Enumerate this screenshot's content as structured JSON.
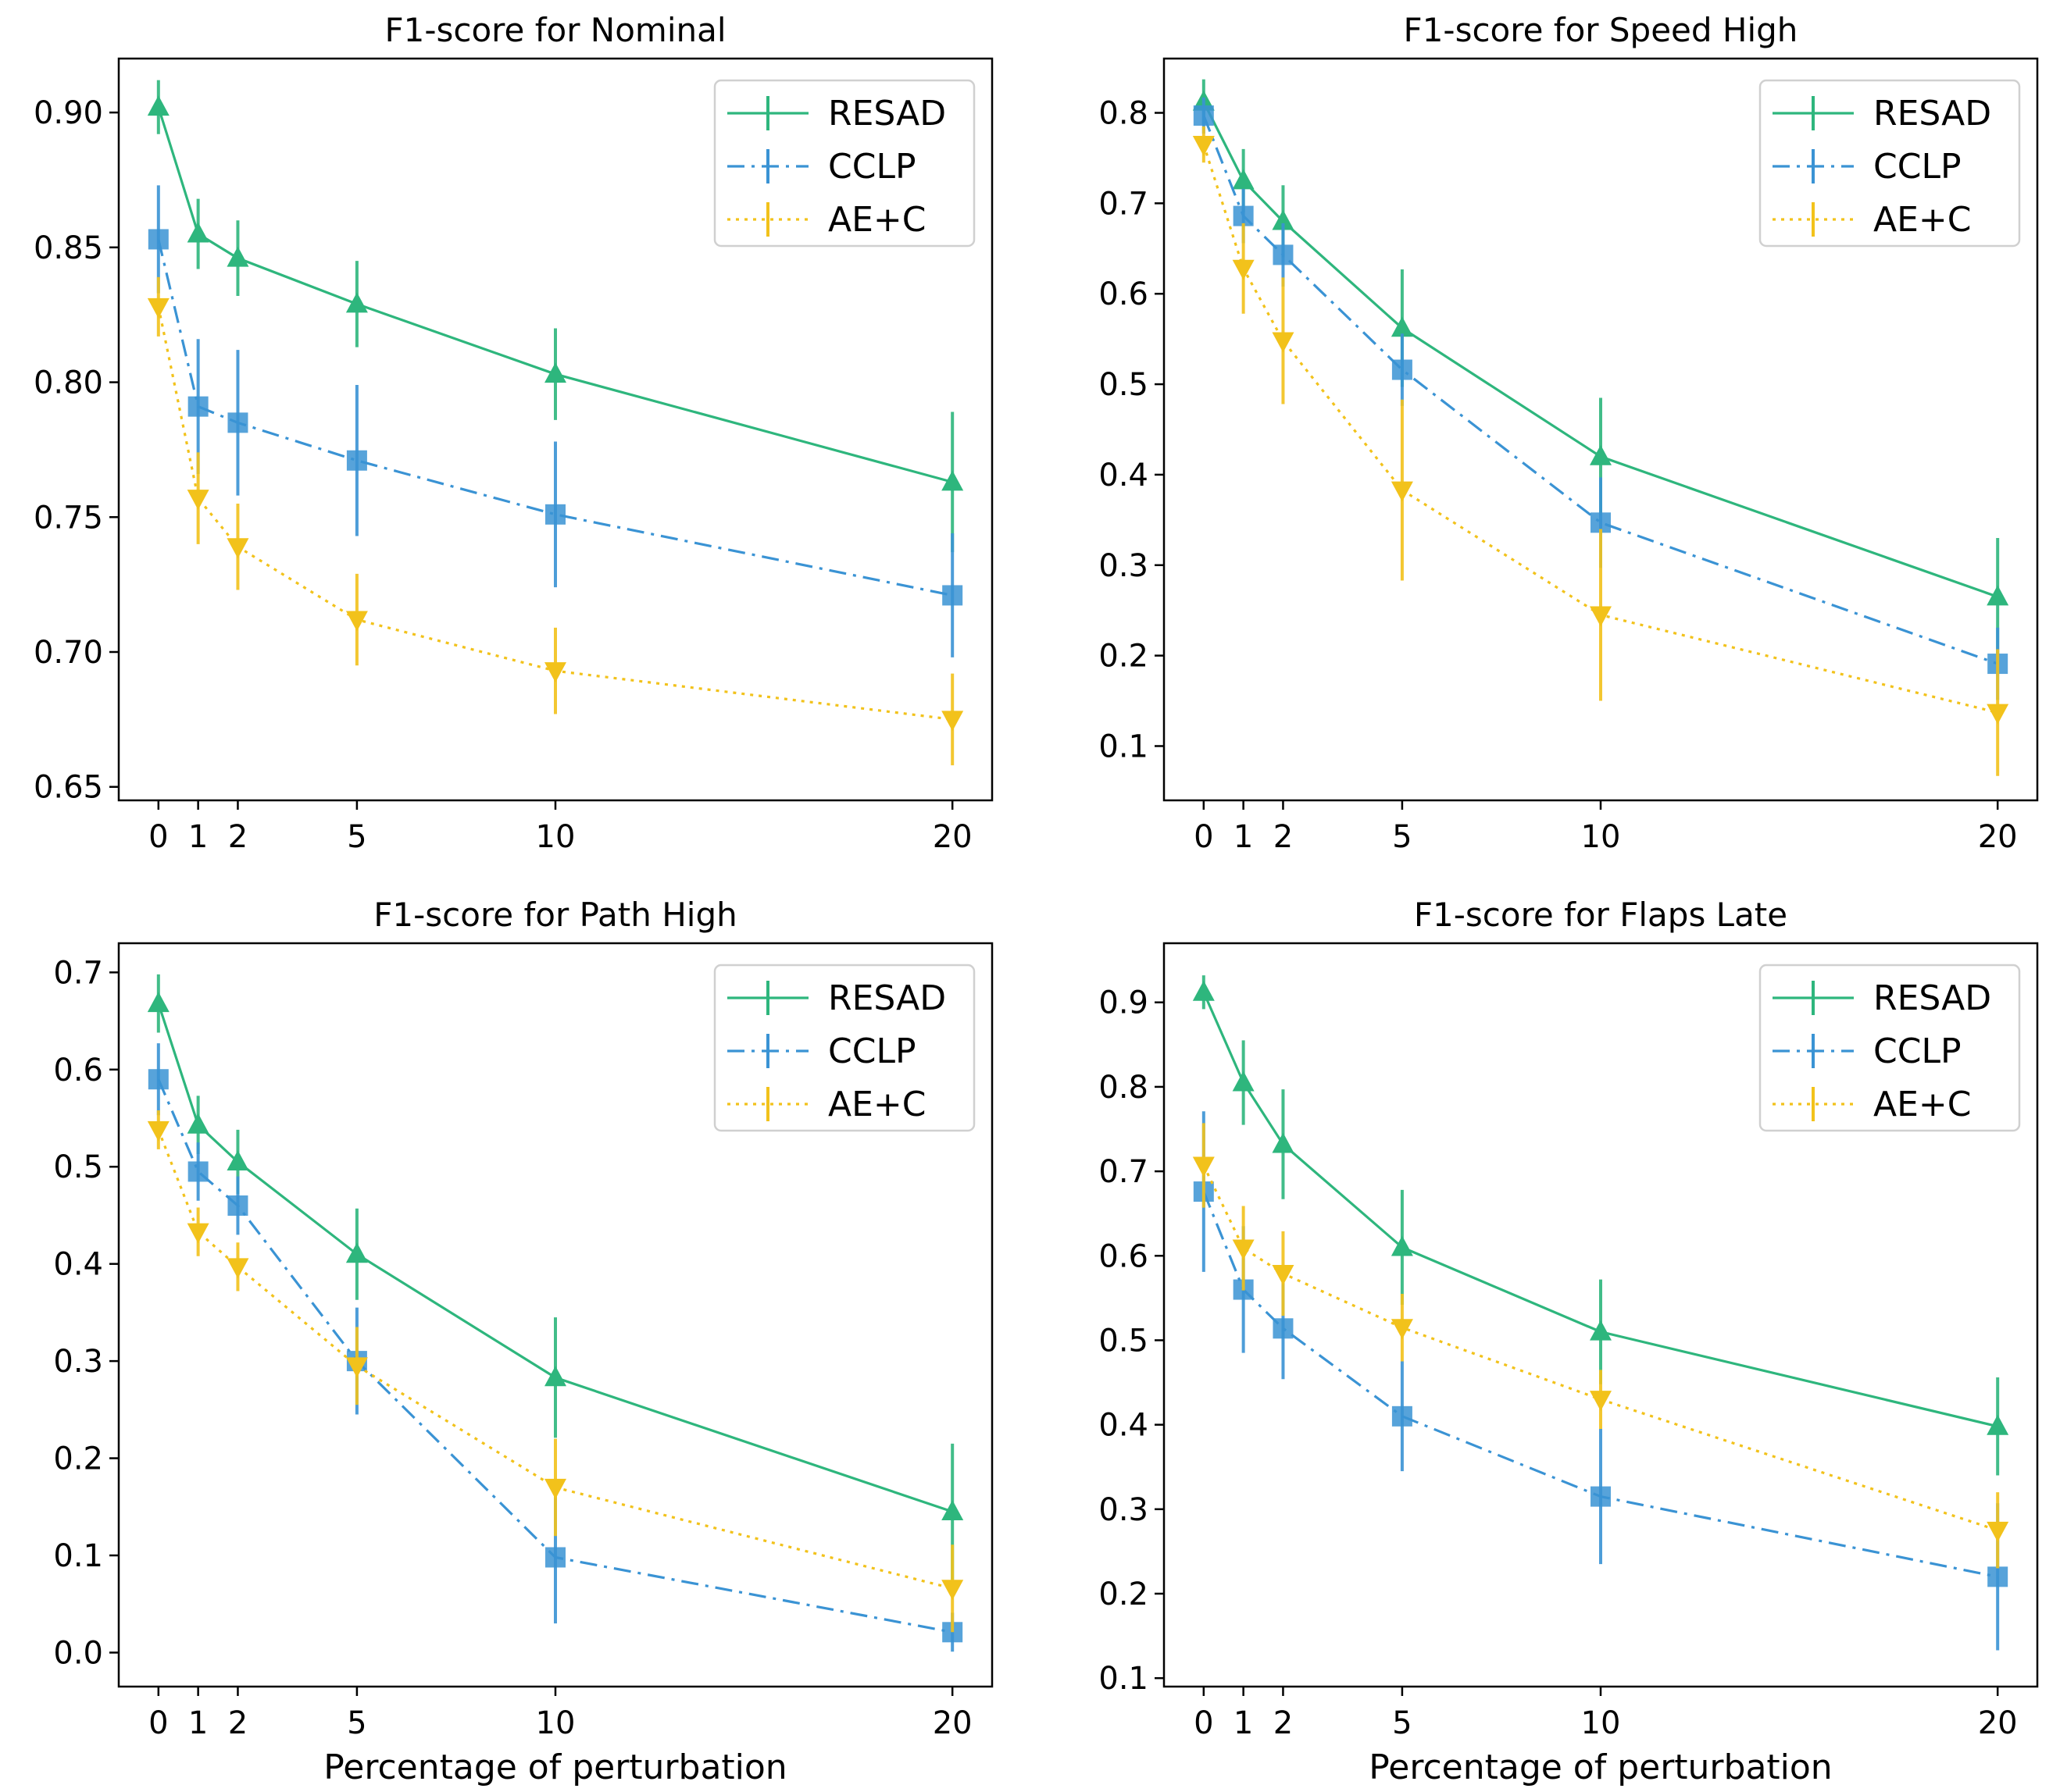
{
  "colors": {
    "RESAD": "#2eb67d",
    "CCLP": "#3a93d4",
    "AE+C": "#f2c21b"
  },
  "chart_data": [
    {
      "type": "line",
      "title": "F1-score for Nominal",
      "xlabel": "",
      "ylabel": "",
      "x": [
        0,
        1,
        2,
        5,
        10,
        20
      ],
      "xticks": [
        "0",
        "1",
        "2",
        "5",
        "10",
        "20"
      ],
      "yticks": [
        "0.65",
        "0.70",
        "0.75",
        "0.80",
        "0.85",
        "0.90"
      ],
      "ylim": [
        0.645,
        0.92
      ],
      "legend": "top-right",
      "series": [
        {
          "name": "RESAD",
          "style": "solid",
          "marker": "triangle-up",
          "values": [
            0.902,
            0.855,
            0.846,
            0.829,
            0.803,
            0.763
          ],
          "errors": [
            0.01,
            0.013,
            0.014,
            0.016,
            0.017,
            0.026
          ]
        },
        {
          "name": "CCLP",
          "style": "dashdot",
          "marker": "square",
          "values": [
            0.853,
            0.791,
            0.785,
            0.771,
            0.751,
            0.721
          ],
          "errors": [
            0.02,
            0.025,
            0.027,
            0.028,
            0.027,
            0.023
          ]
        },
        {
          "name": "AE+C",
          "style": "dotted",
          "marker": "triangle-down",
          "values": [
            0.828,
            0.757,
            0.739,
            0.712,
            0.693,
            0.675
          ],
          "errors": [
            0.011,
            0.017,
            0.016,
            0.017,
            0.016,
            0.017
          ]
        }
      ]
    },
    {
      "type": "line",
      "title": "F1-score for Speed High",
      "xlabel": "",
      "ylabel": "",
      "x": [
        0,
        1,
        2,
        5,
        10,
        20
      ],
      "xticks": [
        "0",
        "1",
        "2",
        "5",
        "10",
        "20"
      ],
      "yticks": [
        "0.1",
        "0.2",
        "0.3",
        "0.4",
        "0.5",
        "0.6",
        "0.7",
        "0.8"
      ],
      "ylim": [
        0.04,
        0.86
      ],
      "legend": "top-right",
      "series": [
        {
          "name": "RESAD",
          "style": "solid",
          "marker": "triangle-up",
          "values": [
            0.812,
            0.725,
            0.68,
            0.562,
            0.42,
            0.265
          ],
          "errors": [
            0.025,
            0.035,
            0.04,
            0.065,
            0.065,
            0.065
          ]
        },
        {
          "name": "CCLP",
          "style": "dashdot",
          "marker": "square",
          "values": [
            0.797,
            0.686,
            0.643,
            0.516,
            0.347,
            0.191
          ],
          "errors": [
            0.02,
            0.03,
            0.035,
            0.04,
            0.05,
            0.04
          ]
        },
        {
          "name": "AE+C",
          "style": "dotted",
          "marker": "triangle-down",
          "values": [
            0.765,
            0.628,
            0.548,
            0.383,
            0.245,
            0.137
          ],
          "errors": [
            0.02,
            0.05,
            0.07,
            0.1,
            0.095,
            0.07
          ]
        }
      ]
    },
    {
      "type": "line",
      "title": "F1-score for Path High",
      "xlabel": "Percentage of perturbation",
      "ylabel": "",
      "x": [
        0,
        1,
        2,
        5,
        10,
        20
      ],
      "xticks": [
        "0",
        "1",
        "2",
        "5",
        "10",
        "20"
      ],
      "yticks": [
        "0.0",
        "0.1",
        "0.2",
        "0.3",
        "0.4",
        "0.5",
        "0.6",
        "0.7"
      ],
      "ylim": [
        -0.035,
        0.73
      ],
      "legend": "top-right",
      "series": [
        {
          "name": "RESAD",
          "style": "solid",
          "marker": "triangle-up",
          "values": [
            0.668,
            0.543,
            0.505,
            0.41,
            0.283,
            0.145
          ],
          "errors": [
            0.03,
            0.03,
            0.033,
            0.047,
            0.062,
            0.07
          ]
        },
        {
          "name": "CCLP",
          "style": "dashdot",
          "marker": "square",
          "values": [
            0.59,
            0.495,
            0.46,
            0.3,
            0.098,
            0.021
          ],
          "errors": [
            0.037,
            0.03,
            0.03,
            0.055,
            0.068,
            0.02
          ]
        },
        {
          "name": "AE+C",
          "style": "dotted",
          "marker": "triangle-down",
          "values": [
            0.538,
            0.433,
            0.397,
            0.295,
            0.17,
            0.066
          ],
          "errors": [
            0.02,
            0.025,
            0.025,
            0.04,
            0.05,
            0.045
          ]
        }
      ]
    },
    {
      "type": "line",
      "title": "F1-score for Flaps Late",
      "xlabel": "Percentage of perturbation",
      "ylabel": "",
      "x": [
        0,
        1,
        2,
        5,
        10,
        20
      ],
      "xticks": [
        "0",
        "1",
        "2",
        "5",
        "10",
        "20"
      ],
      "yticks": [
        "0.1",
        "0.2",
        "0.3",
        "0.4",
        "0.5",
        "0.6",
        "0.7",
        "0.8",
        "0.9"
      ],
      "ylim": [
        0.09,
        0.97
      ],
      "legend": "top-right",
      "series": [
        {
          "name": "RESAD",
          "style": "solid",
          "marker": "triangle-up",
          "values": [
            0.912,
            0.805,
            0.732,
            0.61,
            0.51,
            0.398
          ],
          "errors": [
            0.02,
            0.05,
            0.065,
            0.068,
            0.062,
            0.058
          ]
        },
        {
          "name": "CCLP",
          "style": "dashdot",
          "marker": "square",
          "values": [
            0.676,
            0.56,
            0.514,
            0.41,
            0.315,
            0.22
          ],
          "errors": [
            0.095,
            0.075,
            0.06,
            0.065,
            0.08,
            0.087
          ]
        },
        {
          "name": "AE+C",
          "style": "dotted",
          "marker": "triangle-down",
          "values": [
            0.707,
            0.609,
            0.579,
            0.515,
            0.43,
            0.275
          ],
          "errors": [
            0.05,
            0.05,
            0.05,
            0.04,
            0.035,
            0.045
          ]
        }
      ]
    }
  ]
}
